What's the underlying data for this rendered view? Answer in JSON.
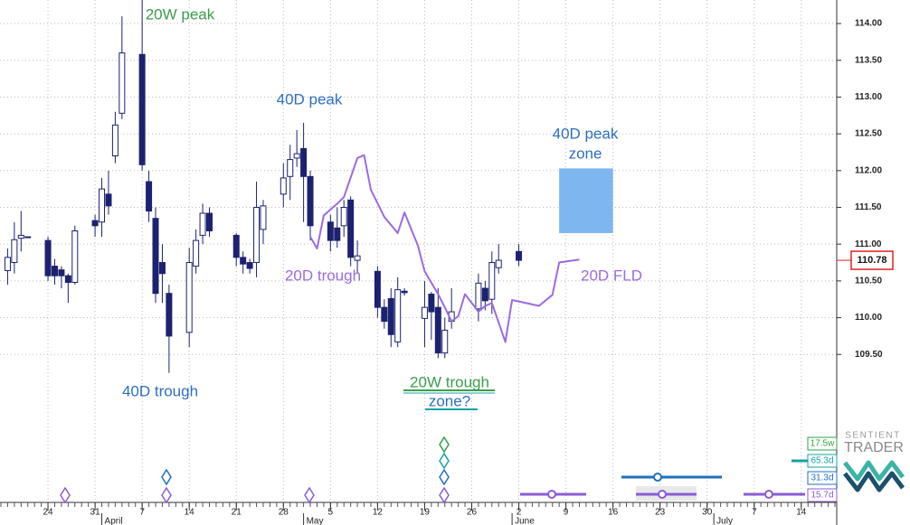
{
  "chart_data": {
    "type": "candlestick",
    "x": [
      "03-18",
      "03-19",
      "03-20",
      "03-21",
      "03-24",
      "03-25",
      "03-26",
      "03-27",
      "03-28",
      "03-31",
      "04-01",
      "04-02",
      "04-03",
      "04-04",
      "04-07",
      "04-08",
      "04-09",
      "04-10",
      "04-11",
      "04-14",
      "04-15",
      "04-16",
      "04-17",
      "04-21",
      "04-22",
      "04-23",
      "04-24",
      "04-25",
      "04-28",
      "04-29",
      "04-30",
      "05-01",
      "05-02",
      "05-05",
      "05-06",
      "05-07",
      "05-08",
      "05-09",
      "05-12",
      "05-13",
      "05-14",
      "05-15",
      "05-16",
      "05-19",
      "05-20",
      "05-21",
      "05-22",
      "05-23",
      "05-27",
      "05-28",
      "05-29",
      "05-30",
      "06-02"
    ],
    "open": [
      110.64,
      110.75,
      111.08,
      111.1,
      111.05,
      110.7,
      110.65,
      110.57,
      110.48,
      111.32,
      111.3,
      111.68,
      112.2,
      112.78,
      113.58,
      111.85,
      111.35,
      110.75,
      110.33,
      109.8,
      110.7,
      111.12,
      111.42,
      111.12,
      110.82,
      110.75,
      110.75,
      111.2,
      111.68,
      111.92,
      112.17,
      112.3,
      111.92,
      111.3,
      111.22,
      111.25,
      111.6,
      110.78,
      110.63,
      110.14,
      110.26,
      109.67,
      110.36,
      109.99,
      110.32,
      110.14,
      109.52,
      109.95,
      110.12,
      110.4,
      110.25,
      110.68,
      110.9
    ],
    "high": [
      110.94,
      111.3,
      111.45,
      111.1,
      111.1,
      110.8,
      110.7,
      110.6,
      111.25,
      111.4,
      111.9,
      112.0,
      112.8,
      114.1,
      114.4,
      112.0,
      111.5,
      111.0,
      110.45,
      110.95,
      111.2,
      111.55,
      111.5,
      111.15,
      110.9,
      110.8,
      111.85,
      111.6,
      112.1,
      112.35,
      112.55,
      112.65,
      112.0,
      111.4,
      111.5,
      111.6,
      111.65,
      111.05,
      110.7,
      110.25,
      110.4,
      110.55,
      110.4,
      110.5,
      110.35,
      110.4,
      110.0,
      110.4,
      110.6,
      110.5,
      110.9,
      111.0,
      111.0
    ],
    "low": [
      110.45,
      110.6,
      110.9,
      111.09,
      110.5,
      110.45,
      110.4,
      110.2,
      110.45,
      111.1,
      111.1,
      111.4,
      112.1,
      112.7,
      112.0,
      111.3,
      110.2,
      110.2,
      109.25,
      109.6,
      110.6,
      111.0,
      111.1,
      110.7,
      110.6,
      110.6,
      110.55,
      111.0,
      111.5,
      111.6,
      112.05,
      111.3,
      111.05,
      110.9,
      110.95,
      111.1,
      110.7,
      110.6,
      110.0,
      109.85,
      109.6,
      109.6,
      110.3,
      109.6,
      109.7,
      109.45,
      109.45,
      109.85,
      109.95,
      110.1,
      110.05,
      110.6,
      110.7
    ],
    "close": [
      110.82,
      111.06,
      111.12,
      111.09,
      110.57,
      110.57,
      110.57,
      110.48,
      111.18,
      111.25,
      111.75,
      111.52,
      112.62,
      113.6,
      112.08,
      111.45,
      110.33,
      110.6,
      109.75,
      110.75,
      111.05,
      111.42,
      111.18,
      110.82,
      110.73,
      110.67,
      111.5,
      111.52,
      111.9,
      112.15,
      112.23,
      111.92,
      111.25,
      111.05,
      111.05,
      111.5,
      110.82,
      110.84,
      110.14,
      109.95,
      109.77,
      110.38,
      110.34,
      110.14,
      110.08,
      109.52,
      109.83,
      110.08,
      110.47,
      110.23,
      110.75,
      110.78,
      110.78
    ],
    "up_color": "#ffffff",
    "down_color": "#1c2270",
    "xlim": [
      "03-17",
      "07-19"
    ],
    "ylim": [
      107.5,
      114.32
    ],
    "xticks": [
      {
        "value": "03-24",
        "label": "24"
      },
      {
        "value": "03-31",
        "label": "31"
      },
      {
        "value": "04-07",
        "label": "7"
      },
      {
        "value": "04-14",
        "label": "14"
      },
      {
        "value": "04-21",
        "label": "21"
      },
      {
        "value": "04-28",
        "label": "28"
      },
      {
        "value": "05-05",
        "label": "5"
      },
      {
        "value": "05-12",
        "label": "12"
      },
      {
        "value": "05-19",
        "label": "19"
      },
      {
        "value": "05-26",
        "label": "26"
      },
      {
        "value": "06-02",
        "label": "2"
      },
      {
        "value": "06-09",
        "label": "9"
      },
      {
        "value": "06-16",
        "label": "16"
      },
      {
        "value": "06-23",
        "label": "23"
      },
      {
        "value": "06-30",
        "label": "30"
      },
      {
        "value": "07-07",
        "label": "7"
      },
      {
        "value": "07-14",
        "label": "14"
      }
    ],
    "months": [
      {
        "value": "04-01",
        "label": "April"
      },
      {
        "value": "05-01",
        "label": "May"
      },
      {
        "value": "06-01",
        "label": "June"
      },
      {
        "value": "07-01",
        "label": "July"
      }
    ],
    "yticks": [
      {
        "value": 109.5,
        "label": "109.50"
      },
      {
        "value": 110,
        "label": "110.00"
      },
      {
        "value": 110.5,
        "label": "110.50"
      },
      {
        "value": 111,
        "label": "111.00"
      },
      {
        "value": 111.5,
        "label": "111.50"
      },
      {
        "value": 112,
        "label": "112.00"
      },
      {
        "value": 112.5,
        "label": "112.50"
      },
      {
        "value": 113,
        "label": "113.00"
      },
      {
        "value": 113.5,
        "label": "113.50"
      },
      {
        "value": 114,
        "label": "114.00"
      }
    ],
    "grid": true,
    "last": 110.78,
    "lines": [
      {
        "name": "20D FLD",
        "color": "#9b6be0",
        "x": [
          "05-02",
          "05-03",
          "05-04",
          "05-06",
          "05-07",
          "05-09",
          "05-10",
          "05-11",
          "05-13",
          "05-15",
          "05-16",
          "05-18",
          "05-19",
          "05-21",
          "05-22",
          "05-23",
          "05-24",
          "05-25",
          "05-27",
          "05-28",
          "05-29",
          "05-31",
          "06-01",
          "06-03",
          "06-05",
          "06-07",
          "06-08",
          "06-11"
        ],
        "values": [
          111.1,
          110.94,
          111.39,
          111.55,
          111.64,
          112.17,
          112.21,
          111.74,
          111.37,
          111.15,
          111.43,
          110.98,
          110.63,
          110.32,
          110.14,
          109.95,
          110.02,
          110.32,
          110.08,
          110.16,
          110.2,
          109.67,
          110.24,
          110.2,
          110.16,
          110.31,
          110.75,
          110.79
        ]
      }
    ],
    "zone": {
      "x": [
        "06-08",
        "06-16"
      ],
      "values": [
        112.03,
        111.15
      ],
      "color": "#7eb6ef"
    },
    "annotations": [
      "20W peak",
      "40D peak",
      "40D peak",
      "zone",
      "20D trough",
      "40D trough",
      "20W trough",
      "zone?"
    ],
    "cycles": [
      {
        "label": "17.5w",
        "color": "#2ea043"
      },
      {
        "label": "65.3d",
        "color": "#17a2a2"
      },
      {
        "label": "31.3d",
        "color": "#1f6fbf"
      },
      {
        "label": "15.7d",
        "color": "#8a5cd6"
      }
    ],
    "logo": [
      "SENTIENT",
      "TRADER"
    ]
  }
}
